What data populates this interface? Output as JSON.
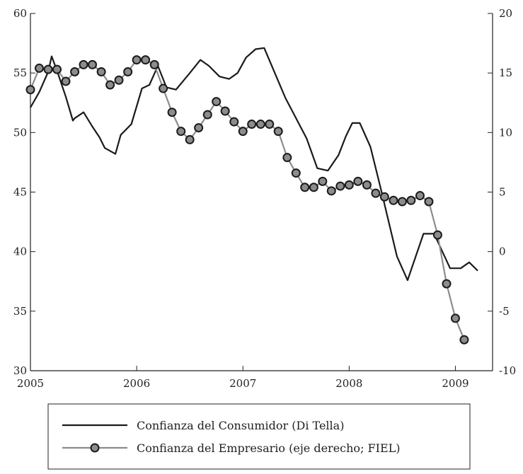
{
  "chart_data": {
    "type": "line",
    "title": "",
    "xlabel": "",
    "ylabel": "",
    "x_ticks": [
      "2005",
      "2006",
      "2007",
      "2008",
      "2009"
    ],
    "xlim": [
      2005.0,
      2009.35
    ],
    "ylim_left": [
      30,
      60
    ],
    "yticks_left": [
      "30",
      "35",
      "40",
      "45",
      "50",
      "55",
      "60"
    ],
    "ylim_right": [
      -10,
      20
    ],
    "yticks_right": [
      "-10",
      "-5",
      "0",
      "5",
      "10",
      "15",
      "20"
    ],
    "grid": false,
    "legend_position": "bottom",
    "series": [
      {
        "name": "Confianza del Consumidor (Di Tella)",
        "axis": "left",
        "color": "#1a1a1a",
        "marker": "none",
        "x": [
          2005.0,
          2005.083,
          2005.167,
          2005.2,
          2005.25,
          2005.333,
          2005.4,
          2005.417,
          2005.5,
          2005.583,
          2005.65,
          2005.7,
          2005.8,
          2005.85,
          2005.95,
          2006.05,
          2006.12,
          2006.2,
          2006.28,
          2006.37,
          2006.5,
          2006.6,
          2006.68,
          2006.78,
          2006.87,
          2006.95,
          2007.03,
          2007.12,
          2007.2,
          2007.4,
          2007.6,
          2007.7,
          2007.8,
          2007.9,
          2007.97,
          2008.03,
          2008.1,
          2008.2,
          2008.3,
          2008.45,
          2008.55,
          2008.7,
          2008.8,
          2008.95,
          2009.05,
          2009.13,
          2009.21
        ],
        "values": [
          52.1,
          53.4,
          55.1,
          56.4,
          55.2,
          53.0,
          51.0,
          51.2,
          51.7,
          50.5,
          49.6,
          48.7,
          48.2,
          49.8,
          50.7,
          53.7,
          54.0,
          55.6,
          53.8,
          53.6,
          55.0,
          56.1,
          55.6,
          54.7,
          54.5,
          55.0,
          56.3,
          57.0,
          57.1,
          52.9,
          49.5,
          47.0,
          46.8,
          48.1,
          49.7,
          50.8,
          50.8,
          48.8,
          45.2,
          39.6,
          37.6,
          41.5,
          41.5,
          38.6,
          38.6,
          39.1,
          38.4
        ]
      },
      {
        "name": "Confianza del Empresario (eje derecho; FIEL)",
        "axis": "right",
        "color": "#8c8c8c",
        "marker": "circle",
        "x": [
          2005.0,
          2005.083,
          2005.167,
          2005.25,
          2005.333,
          2005.417,
          2005.5,
          2005.583,
          2005.667,
          2005.75,
          2005.833,
          2005.917,
          2006.0,
          2006.083,
          2006.167,
          2006.25,
          2006.333,
          2006.417,
          2006.5,
          2006.583,
          2006.667,
          2006.75,
          2006.833,
          2006.917,
          2007.0,
          2007.083,
          2007.167,
          2007.25,
          2007.333,
          2007.417,
          2007.5,
          2007.583,
          2007.667,
          2007.75,
          2007.833,
          2007.917,
          2008.0,
          2008.083,
          2008.167,
          2008.25,
          2008.333,
          2008.417,
          2008.5,
          2008.583,
          2008.667,
          2008.75,
          2008.833,
          2008.917,
          2009.0,
          2009.083
        ],
        "values": [
          13.6,
          15.4,
          15.3,
          15.3,
          14.3,
          15.1,
          15.7,
          15.7,
          15.1,
          14.0,
          14.4,
          15.1,
          16.1,
          16.1,
          15.7,
          13.7,
          11.7,
          10.1,
          9.4,
          10.4,
          11.5,
          12.6,
          11.8,
          10.9,
          10.1,
          10.7,
          10.7,
          10.7,
          10.1,
          7.9,
          6.6,
          5.4,
          5.4,
          5.9,
          5.1,
          5.5,
          5.6,
          5.9,
          5.6,
          4.9,
          4.6,
          4.3,
          4.2,
          4.3,
          4.7,
          4.2,
          1.4,
          -2.7,
          -5.6,
          -7.4
        ]
      }
    ]
  }
}
